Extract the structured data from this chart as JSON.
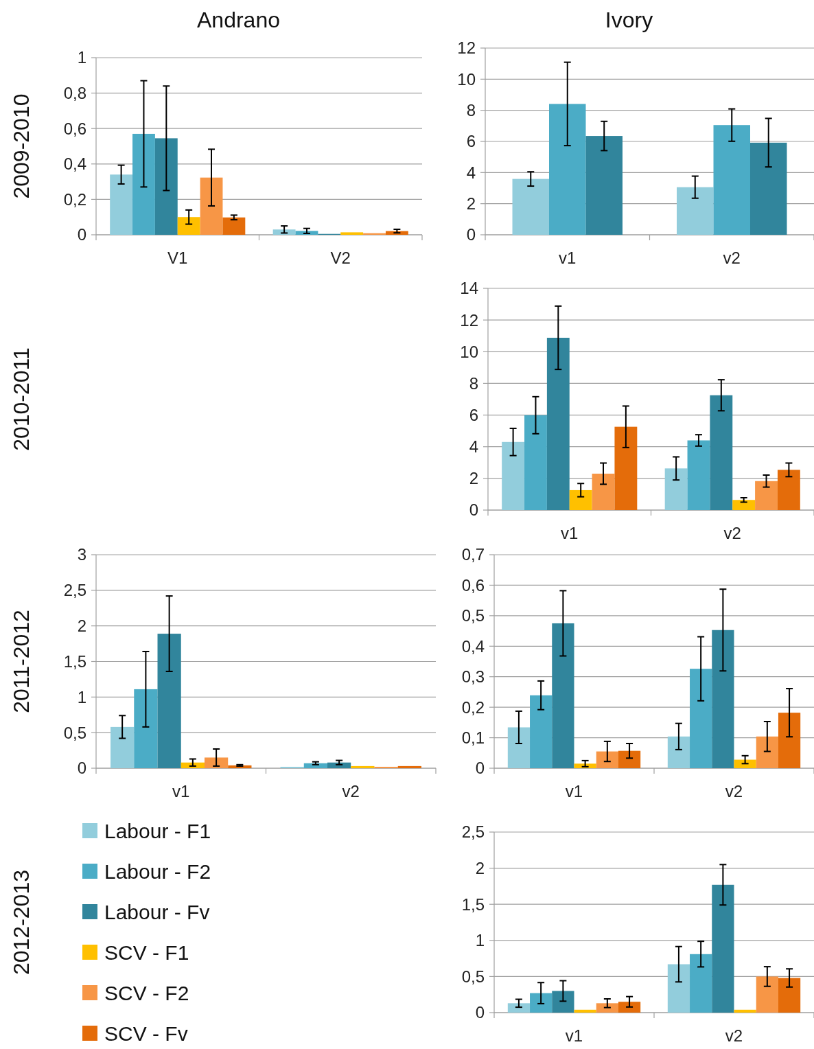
{
  "chart_data": [
    {
      "type": "bar",
      "title": "Andrano",
      "ylabel": "2009-2010",
      "categories": [
        "V1",
        "V2"
      ],
      "ylim": [
        0,
        1
      ],
      "yticks": [
        0,
        {
          "value": 0.2,
          "label": "0,2"
        },
        {
          "value": 0.4,
          "label": "0,4"
        },
        {
          "value": 0.6,
          "label": "0,6"
        },
        {
          "value": 0.8,
          "label": "0,8"
        },
        1
      ],
      "grid": "y",
      "legend": false,
      "series": [
        {
          "color": "#92cddc",
          "values": [
            0.34,
            0.03
          ],
          "errors": [
            0.053,
            0.02
          ]
        },
        {
          "color": "#4bacc6",
          "values": [
            0.57,
            0.022
          ],
          "errors": [
            0.3,
            0.014
          ]
        },
        {
          "color": "#31859c",
          "values": [
            0.545,
            0.005
          ],
          "errors": [
            0.295,
            null
          ]
        },
        {
          "color": "#ffc000",
          "values": [
            0.1,
            0.014
          ],
          "errors": [
            0.04,
            null
          ]
        },
        {
          "color": "#f79646",
          "values": [
            0.323,
            0.009
          ],
          "errors": [
            0.16,
            null
          ]
        },
        {
          "color": "#e46c0a",
          "values": [
            0.098,
            0.021
          ],
          "errors": [
            0.013,
            0.01
          ]
        }
      ]
    },
    {
      "type": "bar",
      "title": "Ivory",
      "categories": [
        "v1",
        "v2"
      ],
      "ylim": [
        0,
        12
      ],
      "yticks": [
        0,
        2,
        4,
        6,
        8,
        10,
        12
      ],
      "grid": "y",
      "legend": false,
      "series": [
        {
          "color": "#92cddc",
          "values": [
            3.59,
            3.06
          ],
          "errors": [
            0.46,
            0.71
          ]
        },
        {
          "color": "#4bacc6",
          "values": [
            8.41,
            7.05
          ],
          "errors": [
            2.68,
            1.04
          ]
        },
        {
          "color": "#31859c",
          "values": [
            6.35,
            5.92
          ],
          "errors": [
            0.94,
            1.56
          ]
        }
      ]
    },
    {
      "type": "bar",
      "ylabel": "2010-2011",
      "categories": [
        "v1",
        "v2"
      ],
      "ylim": [
        0,
        14
      ],
      "yticks": [
        0,
        2,
        4,
        6,
        8,
        10,
        12,
        14
      ],
      "grid": "y",
      "legend": false,
      "series": [
        {
          "color": "#92cddc",
          "values": [
            4.3,
            2.63
          ],
          "errors": [
            0.86,
            0.73
          ]
        },
        {
          "color": "#4bacc6",
          "values": [
            5.99,
            4.4
          ],
          "errors": [
            1.17,
            0.36
          ]
        },
        {
          "color": "#31859c",
          "values": [
            10.88,
            7.25
          ],
          "errors": [
            2.0,
            0.98
          ]
        },
        {
          "color": "#ffc000",
          "values": [
            1.26,
            0.64
          ],
          "errors": [
            0.42,
            0.14
          ]
        },
        {
          "color": "#f79646",
          "values": [
            2.3,
            1.83
          ],
          "errors": [
            0.67,
            0.38
          ]
        },
        {
          "color": "#e46c0a",
          "values": [
            5.26,
            2.54
          ],
          "errors": [
            1.31,
            0.43
          ]
        }
      ]
    },
    {
      "type": "bar",
      "ylabel": "2011-2012",
      "categories": [
        "v1",
        "v2"
      ],
      "ylim": [
        0,
        3
      ],
      "yticks": [
        0,
        {
          "value": 0.5,
          "label": "0,5"
        },
        1,
        {
          "value": 1.5,
          "label": "1,5"
        },
        2,
        {
          "value": 2.5,
          "label": "2,5"
        },
        3
      ],
      "grid": "y",
      "legend": "bottom",
      "series": [
        {
          "name": "Labour - F1",
          "color": "#92cddc",
          "values": [
            0.58,
            0.02
          ],
          "errors": [
            0.16,
            null
          ]
        },
        {
          "name": "Labour - F2",
          "color": "#4bacc6",
          "values": [
            1.11,
            0.07
          ],
          "errors": [
            0.53,
            0.02
          ]
        },
        {
          "name": "Labour - Fv",
          "color": "#31859c",
          "values": [
            1.89,
            0.08
          ],
          "errors": [
            0.53,
            0.03
          ]
        },
        {
          "name": "SCV - F1",
          "color": "#ffc000",
          "values": [
            0.08,
            0.03
          ],
          "errors": [
            0.05,
            null
          ]
        },
        {
          "name": "SCV - F2",
          "color": "#f79646",
          "values": [
            0.15,
            0.02
          ],
          "errors": [
            0.12,
            null
          ]
        },
        {
          "name": "SCV - Fv",
          "color": "#e46c0a",
          "values": [
            0.04,
            0.03
          ],
          "errors": [
            0.01,
            null
          ]
        }
      ]
    },
    {
      "type": "bar",
      "categories": [
        "v1",
        "v2"
      ],
      "ylim": [
        0,
        0.7
      ],
      "yticks": [
        0,
        {
          "value": 0.1,
          "label": "0,1"
        },
        {
          "value": 0.2,
          "label": "0,2"
        },
        {
          "value": 0.3,
          "label": "0,3"
        },
        {
          "value": 0.4,
          "label": "0,4"
        },
        {
          "value": 0.5,
          "label": "0,5"
        },
        {
          "value": 0.6,
          "label": "0,6"
        },
        {
          "value": 0.7,
          "label": "0,7"
        }
      ],
      "grid": "y",
      "legend": false,
      "series": [
        {
          "color": "#92cddc",
          "values": [
            0.134,
            0.104
          ],
          "errors": [
            0.053,
            0.043
          ]
        },
        {
          "color": "#4bacc6",
          "values": [
            0.239,
            0.326
          ],
          "errors": [
            0.047,
            0.105
          ]
        },
        {
          "color": "#31859c",
          "values": [
            0.475,
            0.453
          ],
          "errors": [
            0.107,
            0.134
          ]
        },
        {
          "color": "#ffc000",
          "values": [
            0.015,
            0.028
          ],
          "errors": [
            0.01,
            0.013
          ]
        },
        {
          "color": "#f79646",
          "values": [
            0.055,
            0.104
          ],
          "errors": [
            0.033,
            0.049
          ]
        },
        {
          "color": "#e46c0a",
          "values": [
            0.057,
            0.182
          ],
          "errors": [
            0.024,
            0.079
          ]
        }
      ]
    },
    {
      "type": "bar",
      "ylabel": "2012-2013",
      "categories": [
        "v1",
        "v2"
      ],
      "ylim": [
        0,
        2.5
      ],
      "yticks": [
        0,
        {
          "value": 0.5,
          "label": "0,5"
        },
        1,
        {
          "value": 1.5,
          "label": "1,5"
        },
        2,
        {
          "value": 2.5,
          "label": "2,5"
        }
      ],
      "grid": "y",
      "legend": false,
      "series": [
        {
          "color": "#92cddc",
          "values": [
            0.13,
            0.67
          ],
          "errors": [
            0.055,
            0.245
          ]
        },
        {
          "color": "#4bacc6",
          "values": [
            0.27,
            0.81
          ],
          "errors": [
            0.146,
            0.177
          ]
        },
        {
          "color": "#31859c",
          "values": [
            0.3,
            1.77
          ],
          "errors": [
            0.142,
            0.28
          ]
        },
        {
          "color": "#ffc000",
          "values": [
            0.04,
            0.04
          ],
          "errors": [
            null,
            null
          ]
        },
        {
          "color": "#f79646",
          "values": [
            0.13,
            0.5
          ],
          "errors": [
            0.06,
            0.136
          ]
        },
        {
          "color": "#e46c0a",
          "values": [
            0.15,
            0.48
          ],
          "errors": [
            0.072,
            0.126
          ]
        }
      ]
    }
  ]
}
